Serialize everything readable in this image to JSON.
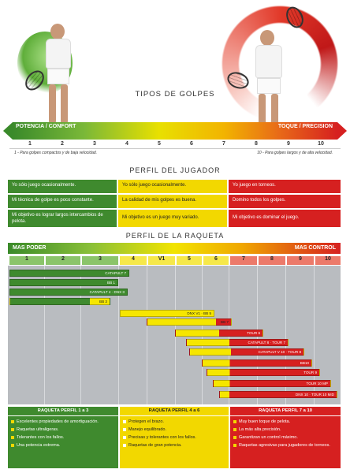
{
  "tipos": {
    "title": "TIPOS DE GOLPES",
    "left_label": "POTENCIA / CONFORT",
    "right_label": "TOQUE / PRECISION",
    "scale": [
      "1",
      "2",
      "3",
      "4",
      "5",
      "6",
      "7",
      "8",
      "9",
      "10"
    ],
    "note_left": "1 - Para golpes compactos y de baja velocidad.",
    "note_right": "10 - Para golpes largos y de alta velocidad."
  },
  "perfil_jugador": {
    "title": "PERFIL DEL JUGADOR",
    "rows": [
      [
        "Yo sólo juego ocasionalmente.",
        "Yo sólo juego ocasionalmente.",
        "Yo juego en torneos."
      ],
      [
        "Mi técnica de golpe es poco constante.",
        "La calidad de mis golpes es buena.",
        "Domino todos los golpes."
      ],
      [
        "Mi objetivo es lograr largos intercambios de pelota.",
        "Mi objetivo es un juego muy variado.",
        "Mi objetivo es dominar el juego."
      ]
    ]
  },
  "perfil_raqueta": {
    "title": "PERFIL DE LA RAQUETA",
    "left_label": "MAS PODER",
    "right_label": "MAS CONTROL",
    "columns": [
      "1",
      "2",
      "3",
      "4",
      "V1",
      "5",
      "6",
      "7",
      "8",
      "9",
      "10"
    ],
    "bars": [
      {
        "label": "CATAPULT 7",
        "color": "green"
      },
      {
        "label": "BB 1",
        "color": "green"
      },
      {
        "label": "CATAPULT 4 · DNX 3",
        "color": "green"
      },
      {
        "label": "BB 3",
        "color": "green"
      },
      {
        "label": "DNX V1 · BB 5",
        "color": "yellow"
      },
      {
        "label": "BB 7",
        "color": "yellow"
      },
      {
        "label": "TOUR 6",
        "color": "red"
      },
      {
        "label": "CATAPULT 8 · TOUR 7",
        "color": "red"
      },
      {
        "label": "CATAPULT V 10 · TOUR 8",
        "color": "red"
      },
      {
        "label": "BB10",
        "color": "red"
      },
      {
        "label": "TOUR 9",
        "color": "red"
      },
      {
        "label": "TOUR 10 MP",
        "color": "red"
      },
      {
        "label": "DNX 10 · TOUR 10 MID",
        "color": "red"
      }
    ],
    "groups": [
      {
        "title": "RAQUETA PERFIL 1 a 3",
        "items": [
          "Excelentes propiedades de amortiguación.",
          "Raquetas ultraligeras.",
          "Tolerantes con los fallos.",
          "Una potencia extrema."
        ]
      },
      {
        "title": "RAQUETA PERFIL 4 a 6",
        "items": [
          "Protegen el brazo.",
          "Manejo equilibrado.",
          "Precisas y tolerantes con los fallos.",
          "Raquetas de gran potencia."
        ]
      },
      {
        "title": "RAQUETA PERFIL 7 a 10",
        "items": [
          "Muy buen toque de pelota.",
          "La más alta precisión.",
          "Garantizan un control máximo.",
          "Raquetas agresivas para jugadores de torneos."
        ]
      }
    ]
  },
  "colors": {
    "green": "#3f8a2e",
    "yellow": "#f2d800",
    "red": "#d62020"
  }
}
